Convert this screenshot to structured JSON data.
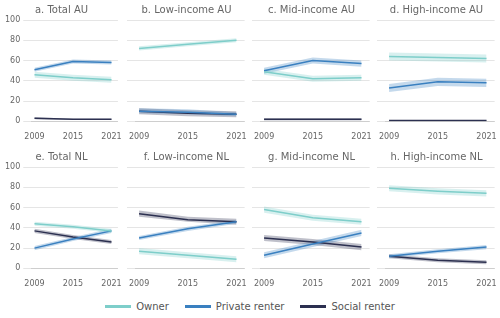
{
  "chart_data": [
    {
      "type": "line",
      "title": "a. Total AU",
      "x": [
        2009,
        2015,
        2021
      ],
      "series": [
        {
          "name": "Owner",
          "color": "#7ececa",
          "values": [
            46,
            43,
            41
          ],
          "lo": [
            43,
            40,
            38
          ],
          "hi": [
            49,
            46,
            44
          ]
        },
        {
          "name": "Private renter",
          "color": "#3a80c0",
          "values": [
            51,
            59,
            58
          ],
          "lo": [
            49,
            57,
            56
          ],
          "hi": [
            53,
            61,
            60
          ]
        },
        {
          "name": "Social renter",
          "color": "#2c3050",
          "values": [
            3,
            2,
            2
          ],
          "lo": [
            2,
            1.5,
            1.5
          ],
          "hi": [
            4,
            2.5,
            2.5
          ]
        }
      ],
      "xlim": [
        2008.5,
        2022.0
      ],
      "xticks": [
        2009,
        2015,
        2021
      ],
      "ylim": [
        0,
        100
      ],
      "yticks": [
        0,
        20,
        40,
        60,
        80,
        100
      ],
      "grid": "y",
      "legend": "bottom"
    },
    {
      "type": "line",
      "title": "b. Low-income AU",
      "x": [
        2009,
        2015,
        2021
      ],
      "series": [
        {
          "name": "Owner",
          "color": "#7ececa",
          "values": [
            72,
            76,
            80
          ],
          "lo": [
            70,
            74,
            78
          ],
          "hi": [
            74,
            78,
            82
          ]
        },
        {
          "name": "Private renter",
          "color": "#3a80c0",
          "values": [
            10,
            9,
            7
          ],
          "lo": [
            8,
            7,
            5
          ],
          "hi": [
            13,
            12,
            9
          ]
        },
        {
          "name": "Social renter",
          "color": "#2c3050",
          "values": [
            10,
            8,
            7
          ],
          "lo": [
            7,
            5,
            4
          ],
          "hi": [
            13,
            11,
            10
          ]
        }
      ],
      "xlim": [
        2008.5,
        2022.0
      ],
      "xticks": [
        2009,
        2015,
        2021
      ],
      "ylim": [
        0,
        100
      ],
      "yticks": [
        0,
        20,
        40,
        60,
        80,
        100
      ],
      "grid": "y",
      "legend": "bottom",
      "tick_labels": "x"
    },
    {
      "type": "line",
      "title": "c. Mid-income AU",
      "x": [
        2009,
        2015,
        2021
      ],
      "series": [
        {
          "name": "Owner",
          "color": "#7ececa",
          "values": [
            49,
            42,
            43
          ],
          "lo": [
            46,
            39,
            40
          ],
          "hi": [
            52,
            45,
            46
          ]
        },
        {
          "name": "Private renter",
          "color": "#3a80c0",
          "values": [
            50,
            60,
            57
          ],
          "lo": [
            47,
            57,
            54
          ],
          "hi": [
            53,
            63,
            60
          ]
        },
        {
          "name": "Social renter",
          "color": "#2c3050",
          "values": [
            2,
            2,
            2
          ],
          "lo": [
            1,
            1,
            1
          ],
          "hi": [
            3,
            3,
            3
          ]
        }
      ],
      "xlim": [
        2008.5,
        2022.0
      ],
      "xticks": [
        2009,
        2015,
        2021
      ],
      "ylim": [
        0,
        100
      ],
      "yticks": [
        0,
        20,
        40,
        60,
        80,
        100
      ],
      "grid": "y",
      "legend": "bottom",
      "tick_labels": "x"
    },
    {
      "type": "line",
      "title": "d. High-income AU",
      "x": [
        2009,
        2015,
        2021
      ],
      "series": [
        {
          "name": "Owner",
          "color": "#7ececa",
          "values": [
            64,
            63,
            62
          ],
          "lo": [
            60,
            59,
            58
          ],
          "hi": [
            68,
            67,
            66
          ]
        },
        {
          "name": "Private renter",
          "color": "#3a80c0",
          "values": [
            33,
            39,
            38
          ],
          "lo": [
            29,
            35,
            34
          ],
          "hi": [
            37,
            43,
            42
          ]
        },
        {
          "name": "Social renter",
          "color": "#2c3050",
          "values": [
            1,
            1,
            1
          ],
          "lo": [
            0.5,
            0.5,
            0.5
          ],
          "hi": [
            1.5,
            1.5,
            1.5
          ]
        }
      ],
      "xlim": [
        2008.5,
        2022.0
      ],
      "xticks": [
        2009,
        2015,
        2021
      ],
      "ylim": [
        0,
        100
      ],
      "yticks": [
        0,
        20,
        40,
        60,
        80,
        100
      ],
      "grid": "y",
      "legend": "bottom",
      "tick_labels": "x"
    },
    {
      "type": "line",
      "title": "e. Total NL",
      "x": [
        2009,
        2015,
        2021
      ],
      "series": [
        {
          "name": "Owner",
          "color": "#7ececa",
          "values": [
            44,
            41,
            37
          ],
          "lo": [
            42,
            39,
            35
          ],
          "hi": [
            46,
            43,
            39
          ]
        },
        {
          "name": "Private renter",
          "color": "#3a80c0",
          "values": [
            20,
            29,
            37
          ],
          "lo": [
            18,
            27,
            35
          ],
          "hi": [
            22,
            31,
            39
          ]
        },
        {
          "name": "Social renter",
          "color": "#2c3050",
          "values": [
            37,
            31,
            26
          ],
          "lo": [
            35,
            29,
            24
          ],
          "hi": [
            39,
            33,
            28
          ]
        }
      ],
      "xlim": [
        2008.5,
        2022.0
      ],
      "xticks": [
        2009,
        2015,
        2021
      ],
      "ylim": [
        0,
        100
      ],
      "yticks": [
        0,
        20,
        40,
        60,
        80,
        100
      ],
      "grid": "y",
      "legend": "bottom"
    },
    {
      "type": "line",
      "title": "f. Low-income NL",
      "x": [
        2009,
        2015,
        2021
      ],
      "series": [
        {
          "name": "Owner",
          "color": "#7ececa",
          "values": [
            17,
            13,
            9
          ],
          "lo": [
            14,
            10,
            6
          ],
          "hi": [
            20,
            16,
            12
          ]
        },
        {
          "name": "Private renter",
          "color": "#3a80c0",
          "values": [
            30,
            39,
            46
          ],
          "lo": [
            28,
            37,
            44
          ],
          "hi": [
            32,
            41,
            48
          ]
        },
        {
          "name": "Social renter",
          "color": "#2c3050",
          "values": [
            54,
            48,
            46
          ],
          "lo": [
            51,
            46,
            43
          ],
          "hi": [
            57,
            51,
            49
          ]
        }
      ],
      "xlim": [
        2008.5,
        2022.0
      ],
      "xticks": [
        2009,
        2015,
        2021
      ],
      "ylim": [
        0,
        100
      ],
      "yticks": [
        0,
        20,
        40,
        60,
        80,
        100
      ],
      "grid": "y",
      "legend": "bottom",
      "tick_labels": "x"
    },
    {
      "type": "line",
      "title": "g. Mid-income NL",
      "x": [
        2009,
        2015,
        2021
      ],
      "series": [
        {
          "name": "Owner",
          "color": "#7ececa",
          "values": [
            58,
            50,
            46
          ],
          "lo": [
            55,
            47,
            43
          ],
          "hi": [
            61,
            53,
            49
          ]
        },
        {
          "name": "Private renter",
          "color": "#3a80c0",
          "values": [
            13,
            24,
            35
          ],
          "lo": [
            10,
            21,
            32
          ],
          "hi": [
            16,
            27,
            38
          ]
        },
        {
          "name": "Social renter",
          "color": "#2c3050",
          "values": [
            30,
            26,
            21
          ],
          "lo": [
            27,
            23,
            18
          ],
          "hi": [
            33,
            29,
            24
          ]
        }
      ],
      "xlim": [
        2008.5,
        2022.0
      ],
      "xticks": [
        2009,
        2015,
        2021
      ],
      "ylim": [
        0,
        100
      ],
      "yticks": [
        0,
        20,
        40,
        60,
        80,
        100
      ],
      "grid": "y",
      "legend": "bottom",
      "tick_labels": "x"
    },
    {
      "type": "line",
      "title": "h. High-income NL",
      "x": [
        2009,
        2015,
        2021
      ],
      "series": [
        {
          "name": "Owner",
          "color": "#7ececa",
          "values": [
            79,
            76,
            74
          ],
          "lo": [
            76,
            73,
            71
          ],
          "hi": [
            82,
            79,
            77
          ]
        },
        {
          "name": "Private renter",
          "color": "#3a80c0",
          "values": [
            12,
            17,
            21
          ],
          "lo": [
            10,
            15,
            19
          ],
          "hi": [
            14,
            19,
            23
          ]
        },
        {
          "name": "Social renter",
          "color": "#2c3050",
          "values": [
            12,
            8,
            6
          ],
          "lo": [
            10,
            6,
            4
          ],
          "hi": [
            14,
            10,
            8
          ]
        }
      ],
      "xlim": [
        2008.5,
        2022.0
      ],
      "xticks": [
        2009,
        2015,
        2021
      ],
      "ylim": [
        0,
        100
      ],
      "yticks": [
        0,
        20,
        40,
        60,
        80,
        100
      ],
      "grid": "y",
      "legend": "bottom",
      "tick_labels": "x"
    }
  ]
}
